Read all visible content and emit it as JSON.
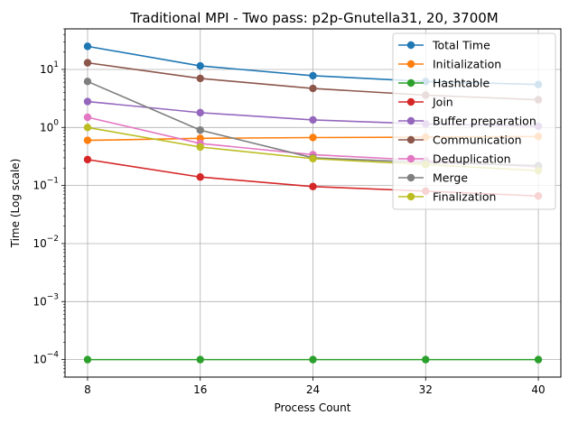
{
  "chart_data": {
    "type": "line",
    "title": "Traditional MPI - Two pass: p2p-Gnutella31, 20, 3700M",
    "xlabel": "Process Count",
    "ylabel": "Time (Log scale)",
    "x": [
      8,
      16,
      24,
      32,
      40
    ],
    "xticks": [
      "8",
      "16",
      "24",
      "32",
      "40"
    ],
    "yscale": "log",
    "ylim": [
      5e-05,
      50
    ],
    "yticks": [
      {
        "value": 0.0001,
        "base": "10",
        "exp": "−4"
      },
      {
        "value": 0.001,
        "base": "10",
        "exp": "−3"
      },
      {
        "value": 0.01,
        "base": "10",
        "exp": "−2"
      },
      {
        "value": 0.1,
        "base": "10",
        "exp": "−1"
      },
      {
        "value": 1,
        "base": "10",
        "exp": "0"
      },
      {
        "value": 10,
        "base": "10",
        "exp": "1"
      }
    ],
    "grid": true,
    "legend_position": "top-right",
    "series": [
      {
        "name": "Total Time",
        "color": "#1f77b4",
        "values": [
          25,
          11.5,
          7.8,
          6.2,
          5.5
        ]
      },
      {
        "name": "Initialization",
        "color": "#ff7f0e",
        "values": [
          0.6,
          0.65,
          0.67,
          0.68,
          0.7
        ]
      },
      {
        "name": "Hashtable",
        "color": "#2ca02c",
        "values": [
          0.0001,
          0.0001,
          0.0001,
          0.0001,
          0.0001
        ]
      },
      {
        "name": "Join",
        "color": "#d62728",
        "values": [
          0.28,
          0.14,
          0.096,
          0.08,
          0.066
        ]
      },
      {
        "name": "Buffer preparation",
        "color": "#9467bd",
        "values": [
          2.8,
          1.8,
          1.35,
          1.15,
          1.05
        ]
      },
      {
        "name": "Communication",
        "color": "#8c564b",
        "values": [
          13,
          7,
          4.7,
          3.6,
          3.0
        ]
      },
      {
        "name": "Deduplication",
        "color": "#e377c2",
        "values": [
          1.5,
          0.53,
          0.34,
          0.27,
          0.21
        ]
      },
      {
        "name": "Merge",
        "color": "#7f7f7f",
        "values": [
          6.2,
          0.9,
          0.3,
          0.25,
          0.22
        ]
      },
      {
        "name": "Finalization",
        "color": "#bcbd22",
        "values": [
          1.0,
          0.46,
          0.29,
          0.23,
          0.18
        ]
      }
    ]
  }
}
